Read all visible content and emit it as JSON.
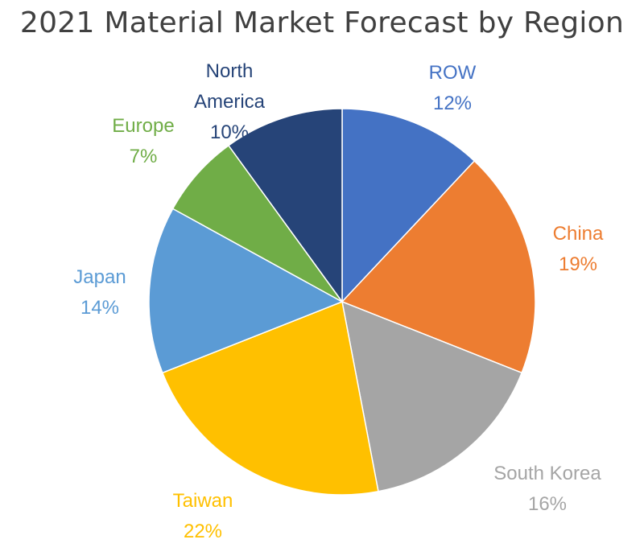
{
  "chart_data": {
    "type": "pie",
    "title": "2021 Material Market Forecast by Region",
    "slices": [
      {
        "name": "ROW",
        "value": 12,
        "label": "12%",
        "color": "#4472C4"
      },
      {
        "name": "China",
        "value": 19,
        "label": "19%",
        "color": "#ED7D31"
      },
      {
        "name": "South Korea",
        "value": 16,
        "label": "16%",
        "color": "#A5A5A5"
      },
      {
        "name": "Taiwan",
        "value": 22,
        "label": "22%",
        "color": "#FFC000"
      },
      {
        "name": "Japan",
        "value": 14,
        "label": "14%",
        "color": "#5B9BD5"
      },
      {
        "name": "Europe",
        "value": 7,
        "label": "7%",
        "color": "#70AD47"
      },
      {
        "name": "North America",
        "value": 10,
        "label": "10%",
        "color": "#264478"
      }
    ],
    "start_angle": "12 o'clock",
    "direction": "clockwise",
    "legend": "none"
  }
}
